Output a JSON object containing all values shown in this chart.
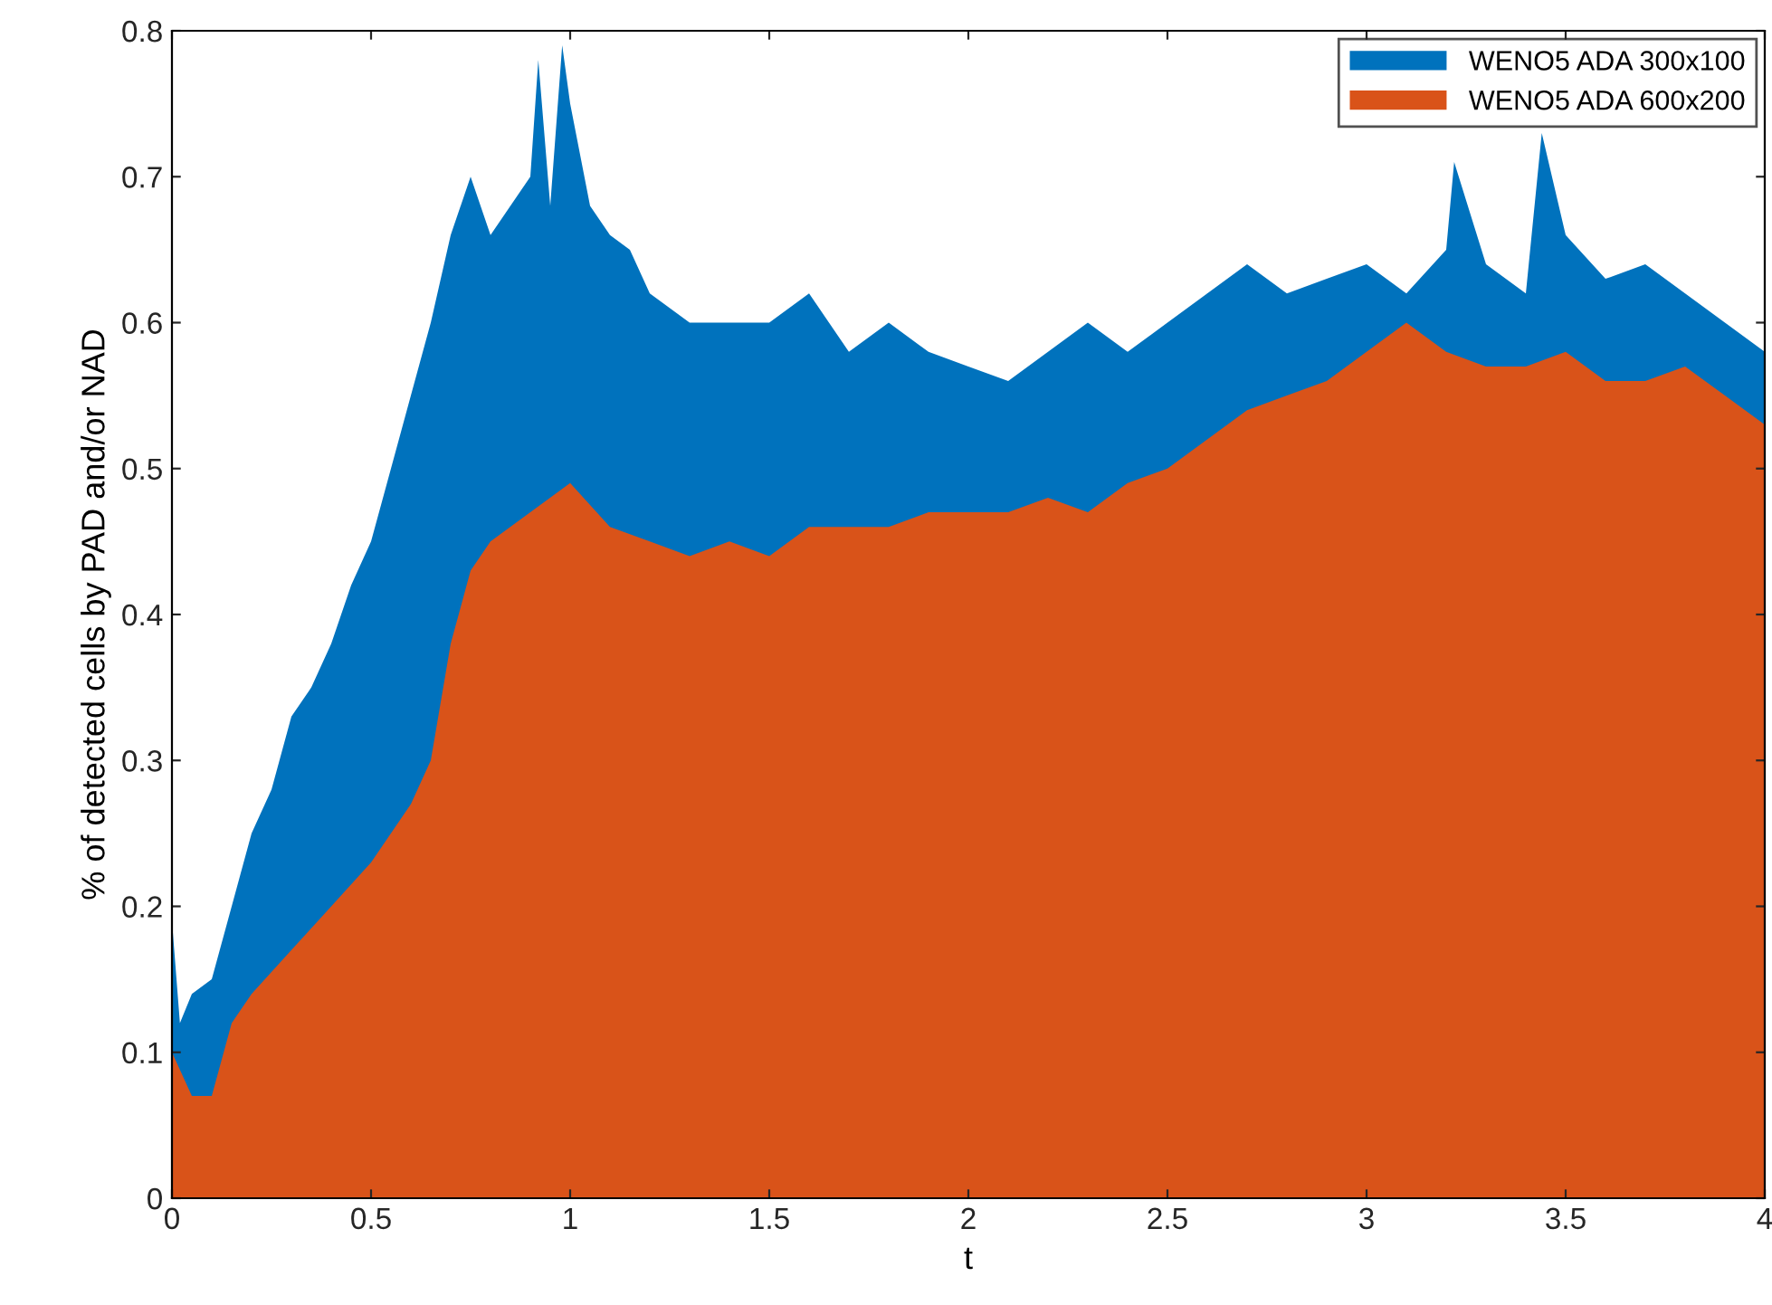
{
  "chart_data": {
    "type": "area",
    "xlabel": "t",
    "ylabel": "% of detected cells by PAD and/or NAD",
    "xlim": [
      0,
      4
    ],
    "ylim": [
      0,
      0.8
    ],
    "xticks": [
      0,
      0.5,
      1,
      1.5,
      2,
      2.5,
      3,
      3.5,
      4
    ],
    "yticks": [
      0,
      0.1,
      0.2,
      0.3,
      0.4,
      0.5,
      0.6,
      0.7,
      0.8
    ],
    "grid": false,
    "legend": "top right",
    "series": [
      {
        "name": "WENO5 ADA 300x100",
        "color": "#0072bd",
        "x": [
          0,
          0.02,
          0.05,
          0.1,
          0.15,
          0.2,
          0.25,
          0.3,
          0.35,
          0.4,
          0.45,
          0.5,
          0.55,
          0.6,
          0.65,
          0.7,
          0.75,
          0.8,
          0.85,
          0.9,
          0.92,
          0.95,
          0.98,
          1.0,
          1.05,
          1.1,
          1.15,
          1.2,
          1.3,
          1.4,
          1.5,
          1.6,
          1.7,
          1.8,
          1.9,
          2.0,
          2.1,
          2.2,
          2.3,
          2.4,
          2.5,
          2.6,
          2.7,
          2.8,
          2.9,
          3.0,
          3.1,
          3.2,
          3.22,
          3.3,
          3.4,
          3.44,
          3.5,
          3.6,
          3.7,
          3.8,
          3.9,
          4.0
        ],
        "values": [
          0.19,
          0.12,
          0.14,
          0.15,
          0.2,
          0.25,
          0.28,
          0.33,
          0.35,
          0.38,
          0.42,
          0.45,
          0.5,
          0.55,
          0.6,
          0.66,
          0.7,
          0.66,
          0.68,
          0.7,
          0.78,
          0.68,
          0.79,
          0.75,
          0.68,
          0.66,
          0.65,
          0.62,
          0.6,
          0.6,
          0.6,
          0.62,
          0.58,
          0.6,
          0.58,
          0.57,
          0.56,
          0.58,
          0.6,
          0.58,
          0.6,
          0.62,
          0.64,
          0.62,
          0.63,
          0.64,
          0.62,
          0.65,
          0.71,
          0.64,
          0.62,
          0.73,
          0.66,
          0.63,
          0.64,
          0.62,
          0.6,
          0.58
        ]
      },
      {
        "name": "WENO5 ADA 600x200",
        "color": "#d95319",
        "x": [
          0,
          0.05,
          0.1,
          0.15,
          0.2,
          0.3,
          0.4,
          0.5,
          0.6,
          0.65,
          0.7,
          0.75,
          0.8,
          0.9,
          1.0,
          1.1,
          1.2,
          1.3,
          1.4,
          1.5,
          1.6,
          1.7,
          1.8,
          1.9,
          2.0,
          2.1,
          2.2,
          2.3,
          2.4,
          2.5,
          2.6,
          2.7,
          2.8,
          2.9,
          3.0,
          3.1,
          3.2,
          3.3,
          3.4,
          3.5,
          3.6,
          3.7,
          3.8,
          3.9,
          4.0
        ],
        "values": [
          0.1,
          0.07,
          0.07,
          0.12,
          0.14,
          0.17,
          0.2,
          0.23,
          0.27,
          0.3,
          0.38,
          0.43,
          0.45,
          0.47,
          0.49,
          0.46,
          0.45,
          0.44,
          0.45,
          0.44,
          0.46,
          0.46,
          0.46,
          0.47,
          0.47,
          0.47,
          0.48,
          0.47,
          0.49,
          0.5,
          0.52,
          0.54,
          0.55,
          0.56,
          0.58,
          0.6,
          0.58,
          0.57,
          0.57,
          0.58,
          0.56,
          0.56,
          0.57,
          0.55,
          0.53
        ]
      }
    ]
  }
}
